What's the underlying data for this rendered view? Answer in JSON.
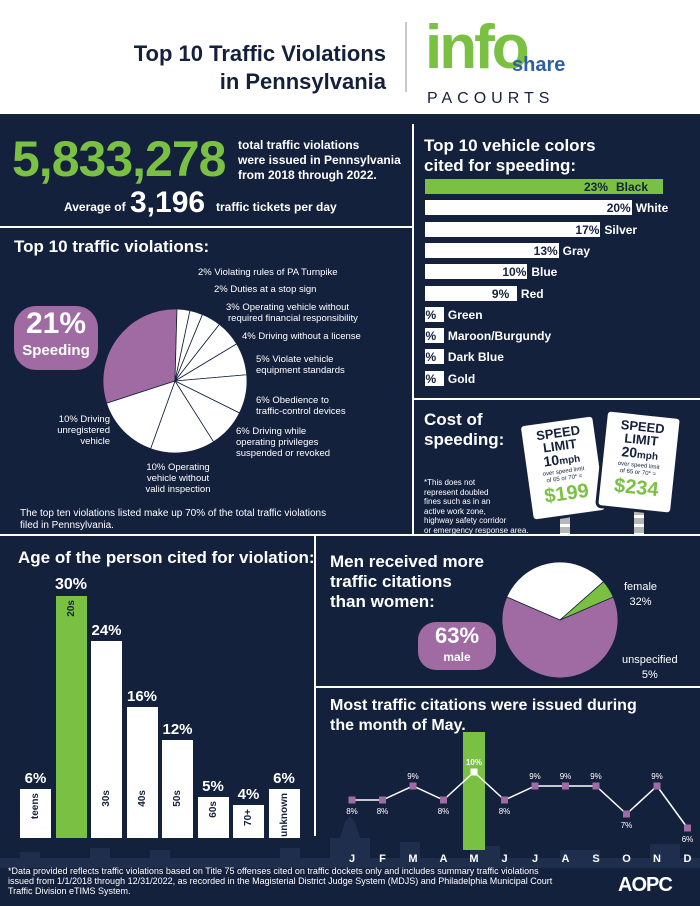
{
  "header": {
    "title_line1": "Top 10 Traffic Violations",
    "title_line2": "in Pennsylvania",
    "logo_info": "info",
    "logo_share": "share",
    "logo_pacourts": "PACOURTS"
  },
  "totals": {
    "total": "5,833,278",
    "total_text_1": "total traffic violations",
    "total_text_2": "were issued in Pennsylvania",
    "total_text_3": "from 2018 through 2022.",
    "avg_prefix": "Average of",
    "avg_value": "3,196",
    "avg_suffix": "traffic tickets per day"
  },
  "violations": {
    "title": "Top 10 traffic violations:",
    "speeding_pct": "21%",
    "speeding_label": "Speeding",
    "labels": [
      "2% Violating rules of PA Turnpike",
      "2% Duties at a stop sign",
      "3% Operating vehicle without",
      "required financial responsibility",
      "4% Driving without a license",
      "5% Violate vehicle",
      "equipment standards",
      "6% Obedience to",
      "traffic-control devices",
      "6% Driving while",
      "operating privileges",
      "suspended or revoked",
      "10% Operating",
      "vehicle without",
      "valid inspection",
      "10% Driving",
      "unregistered",
      "vehicle"
    ],
    "note_1": "The top ten violations listed make up 70% of the total traffic violations",
    "note_2": "filed in Pennsylvania."
  },
  "colors": {
    "title_1": "Top 10 vehicle colors",
    "title_2": "cited for speeding:",
    "items": [
      {
        "pct": "23%",
        "name": "Black"
      },
      {
        "pct": "20%",
        "name": "White"
      },
      {
        "pct": "17%",
        "name": "Silver"
      },
      {
        "pct": "13%",
        "name": "Gray"
      },
      {
        "pct": "10%",
        "name": "Blue"
      },
      {
        "pct": "9%",
        "name": "Red"
      },
      {
        "pct": "2%",
        "name": "Green"
      },
      {
        "pct": "2%",
        "name": "Maroon/Burgundy"
      },
      {
        "pct": "2%",
        "name": "Dark Blue"
      },
      {
        "pct": "2%",
        "name": "Gold"
      }
    ]
  },
  "cost": {
    "title_1": "Cost of",
    "title_2": "speeding:",
    "note_1": "*This does not",
    "note_2": "represent doubled",
    "note_3": "fines such as in an",
    "note_4": "active work zone,",
    "note_5": "highway safety corridor",
    "note_6": "or emergency response area.",
    "sign_head": "SPEED",
    "sign_head2": "LIMIT",
    "sign1_mph": "10",
    "sign1_mph_unit": "mph",
    "sign1_sub1": "over speed limit",
    "sign1_sub2": "of 65 or 70* =",
    "sign1_cost": "$199",
    "sign2_mph": "20",
    "sign2_mph_unit": "mph",
    "sign2_sub1": "over speed limit",
    "sign2_sub2": "of 65 or 70* =",
    "sign2_cost": "$234"
  },
  "age": {
    "title": "Age of the person cited for violation:",
    "items": [
      {
        "pct": "6%",
        "label": "teens",
        "value": 6
      },
      {
        "pct": "30%",
        "label": "20s",
        "value": 30
      },
      {
        "pct": "24%",
        "label": "30s",
        "value": 24
      },
      {
        "pct": "16%",
        "label": "40s",
        "value": 16
      },
      {
        "pct": "12%",
        "label": "50s",
        "value": 12
      },
      {
        "pct": "5%",
        "label": "60s",
        "value": 5
      },
      {
        "pct": "4%",
        "label": "70+",
        "value": 4
      },
      {
        "pct": "6%",
        "label": "unknown",
        "value": 6
      }
    ]
  },
  "gender": {
    "title_1": "Men received more",
    "title_2": "traffic citations",
    "title_3": "than women:",
    "male_pct": "63%",
    "male_label": "male",
    "female_label": "female",
    "female_pct": "32%",
    "unspec_label": "unspecified",
    "unspec_pct": "5%"
  },
  "months": {
    "title_1": "Most traffic citations were issued during",
    "title_2": "the month of May."
  },
  "footer": {
    "line_1": "*Data provided reflects traffic violations based on Title 75 offenses cited on traffic dockets only and includes summary traffic violations",
    "line_2": "issued from 1/1/2018 through 12/31/2022, as recorded in the Magisterial District Judge System (MDJS) and Philadelphia Municipal Court",
    "line_3": "Traffic Division eTIMS System.",
    "brand": "AOPC"
  },
  "chart_data": [
    {
      "type": "pie",
      "title": "Top 10 traffic violations:",
      "categories": [
        "Speeding",
        "Violating rules of PA Turnpike",
        "Duties at a stop sign",
        "Operating vehicle without required financial responsibility",
        "Driving without a license",
        "Violate vehicle equipment standards",
        "Obedience to traffic-control devices",
        "Driving while operating privileges suspended or revoked",
        "Operating vehicle without valid inspection",
        "Driving unregistered vehicle"
      ],
      "values": [
        21,
        2,
        2,
        3,
        4,
        5,
        6,
        6,
        10,
        10
      ],
      "colors": {
        "highlight": "#a06aa3",
        "other": "#ffffff"
      }
    },
    {
      "type": "bar",
      "title": "Top 10 vehicle colors cited for speeding:",
      "categories": [
        "Black",
        "White",
        "Silver",
        "Gray",
        "Blue",
        "Red",
        "Green",
        "Maroon/Burgundy",
        "Dark Blue",
        "Gold"
      ],
      "values": [
        23,
        20,
        17,
        13,
        10,
        9,
        2,
        2,
        2,
        2
      ],
      "colors": {
        "highlight": "#7ac143",
        "other": "#ffffff"
      }
    },
    {
      "type": "bar",
      "title": "Age of the person cited for violation:",
      "categories": [
        "teens",
        "20s",
        "30s",
        "40s",
        "50s",
        "60s",
        "70+",
        "unknown"
      ],
      "values": [
        6,
        30,
        24,
        16,
        12,
        5,
        4,
        6
      ],
      "colors": {
        "highlight": "#7ac143",
        "other": "#ffffff"
      }
    },
    {
      "type": "pie",
      "title": "Men received more traffic citations than women:",
      "categories": [
        "male",
        "female",
        "unspecified"
      ],
      "values": [
        63,
        32,
        5
      ],
      "colors": {
        "male": "#a06aa3",
        "female": "#ffffff",
        "unspecified": "#7ac143"
      }
    },
    {
      "type": "line",
      "title": "Most traffic citations were issued during the month of May.",
      "categories": [
        "J",
        "F",
        "M",
        "A",
        "M",
        "J",
        "J",
        "A",
        "S",
        "O",
        "N",
        "D"
      ],
      "values": [
        8,
        8,
        9,
        8,
        10,
        8,
        9,
        9,
        9,
        7,
        9,
        6
      ],
      "labels": [
        "8%",
        "8%",
        "9%",
        "8%",
        "10%",
        "8%",
        "9%",
        "9%",
        "9%",
        "7%",
        "9%",
        "6%"
      ],
      "colors": {
        "line": "#ffffff",
        "point": "#a06aa3",
        "highlight": "#7ac143"
      }
    }
  ]
}
